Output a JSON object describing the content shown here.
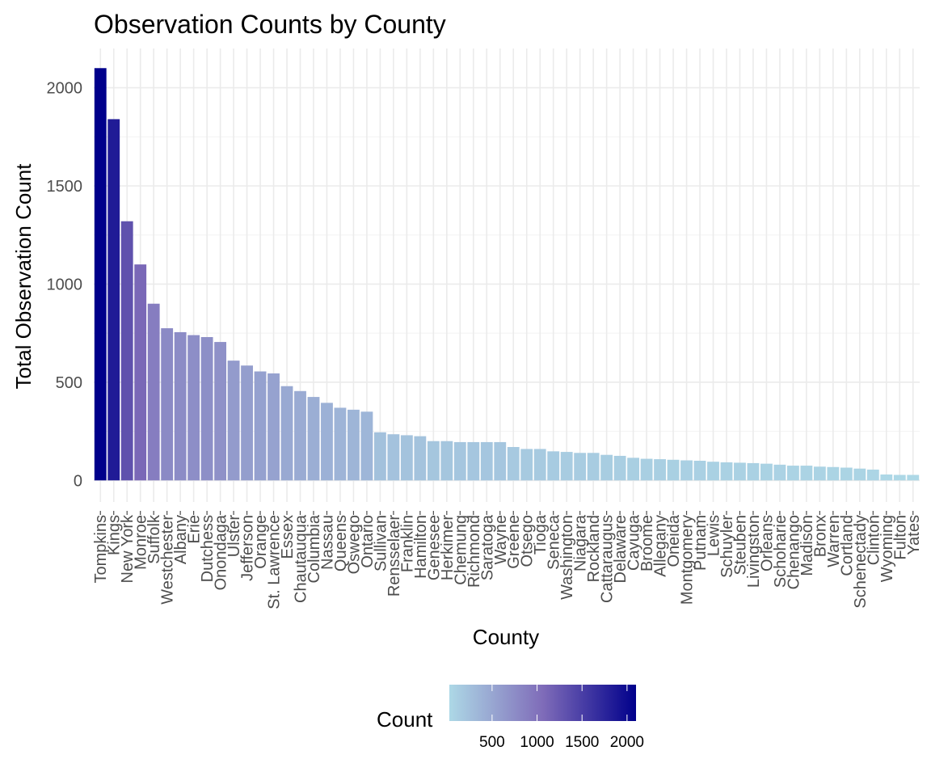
{
  "chart_data": {
    "type": "bar",
    "title": "Observation Counts by County",
    "xlabel": "County",
    "ylabel": "Total Observation Count",
    "ylim": [
      -110,
      2200
    ],
    "yticks": [
      0,
      500,
      1000,
      1500,
      2000
    ],
    "grid": true,
    "legend": {
      "title": "Count",
      "placement": "bottom",
      "ticks": [
        500,
        1000,
        1500,
        2000
      ],
      "range": [
        25,
        2100
      ],
      "color_low": "#add8e6",
      "color_high": "#00008b"
    },
    "categories": [
      "Tompkins",
      "Kings",
      "New York",
      "Monroe",
      "Suffolk",
      "Westchester",
      "Albany",
      "Erie",
      "Dutchess",
      "Onondaga",
      "Ulster",
      "Jefferson",
      "Orange",
      "St. Lawrence",
      "Essex",
      "Chautauqua",
      "Columbia",
      "Nassau",
      "Queens",
      "Oswego",
      "Ontario",
      "Sullivan",
      "Rensselaer",
      "Franklin",
      "Hamilton",
      "Genesee",
      "Herkimer",
      "Chemung",
      "Richmond",
      "Saratoga",
      "Wayne",
      "Greene",
      "Otsego",
      "Tioga",
      "Seneca",
      "Washington",
      "Niagara",
      "Rockland",
      "Cattaraugus",
      "Delaware",
      "Cayuga",
      "Broome",
      "Allegany",
      "Oneida",
      "Montgomery",
      "Putnam",
      "Lewis",
      "Schuyler",
      "Steuben",
      "Livingston",
      "Orleans",
      "Schoharie",
      "Chenango",
      "Madison",
      "Bronx",
      "Warren",
      "Cortland",
      "Schenectady",
      "Clinton",
      "Wyoming",
      "Fulton",
      "Yates"
    ],
    "values": [
      2100,
      1840,
      1320,
      1100,
      900,
      775,
      755,
      740,
      730,
      705,
      610,
      585,
      555,
      545,
      480,
      455,
      425,
      395,
      370,
      360,
      350,
      245,
      235,
      230,
      225,
      200,
      200,
      195,
      195,
      195,
      195,
      170,
      160,
      160,
      148,
      145,
      140,
      140,
      130,
      125,
      115,
      110,
      108,
      105,
      102,
      100,
      95,
      92,
      90,
      88,
      85,
      80,
      75,
      75,
      70,
      68,
      65,
      60,
      55,
      30,
      28,
      28
    ]
  }
}
